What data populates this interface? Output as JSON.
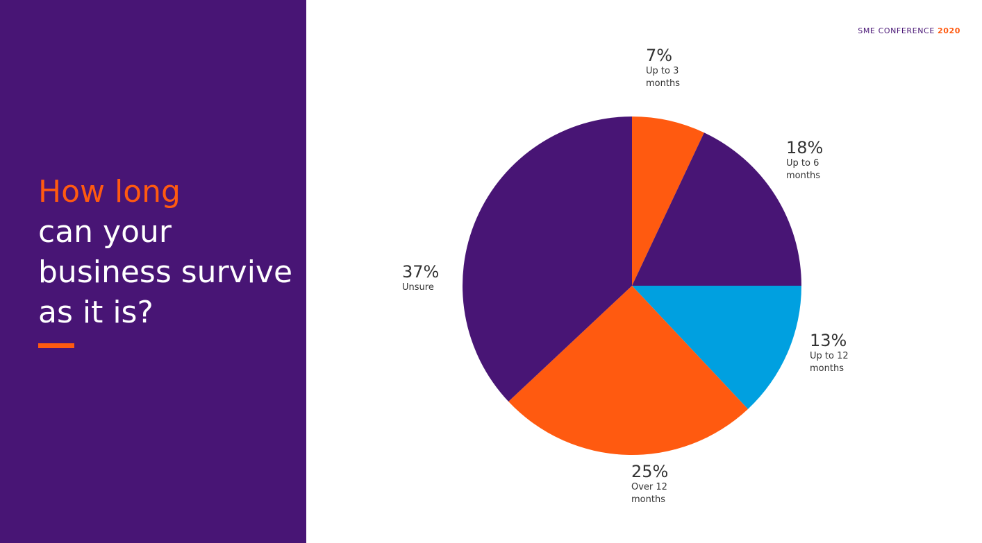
{
  "slide": {
    "headline_accent": "How long",
    "headline_lines": [
      "can your",
      "business survive",
      "as it is?"
    ],
    "conference_label": "SME CONFERENCE",
    "conference_year": "2020"
  },
  "colors": {
    "purple": "#481575",
    "orange": "#ff5a10",
    "blue": "#00a0e0"
  },
  "chart_data": {
    "type": "pie",
    "title": "",
    "start_angle_deg": 0,
    "direction": "clockwise",
    "slices": [
      {
        "label": "Up to 3 months",
        "value": 7,
        "display": "7%",
        "color": "#ff5a10"
      },
      {
        "label": "Up to 6 months",
        "value": 18,
        "display": "18%",
        "color": "#481575"
      },
      {
        "label": "Up to 12 months",
        "value": 13,
        "display": "13%",
        "color": "#00a0e0"
      },
      {
        "label": "Over 12 months",
        "value": 25,
        "display": "25%",
        "color": "#ff5a10"
      },
      {
        "label": "Unsure",
        "value": 37,
        "display": "37%",
        "color": "#481575"
      }
    ]
  }
}
